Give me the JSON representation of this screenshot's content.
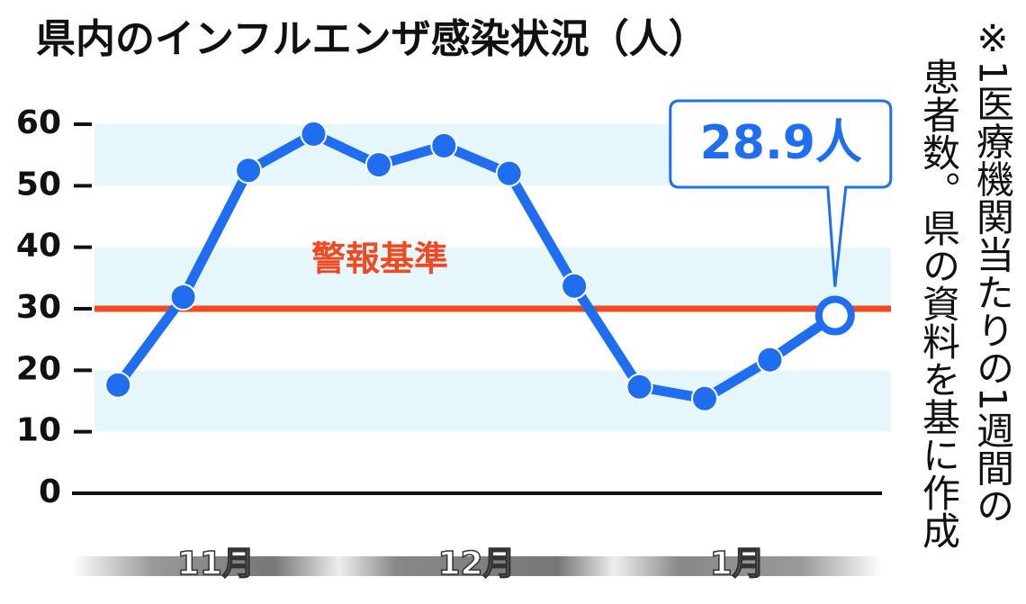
{
  "chart_data": {
    "type": "line",
    "title": "県内のインフルエンザ感染状況（人）",
    "note": [
      "※1医療機関当たりの1週間の",
      "患者数。県の資料を基に作成"
    ],
    "categories": [
      null,
      null,
      null,
      null,
      null,
      null,
      null,
      null,
      null,
      null,
      null,
      null
    ],
    "x_groups": [
      "11月",
      "12月",
      "1月"
    ],
    "series": [
      {
        "name": null,
        "color": "#1f6ef0",
        "values": [
          17.6,
          31.9,
          52.5,
          58.4,
          53.4,
          56.5,
          52.0,
          33.7,
          17.3,
          15.4,
          21.7,
          28.9
        ],
        "value_labels": [
          null,
          null,
          null,
          null,
          null,
          null,
          null,
          null,
          null,
          null,
          null,
          "28.9人"
        ]
      }
    ],
    "reference_line": {
      "value": 30,
      "label": "警報基準",
      "color": "#f04a23"
    },
    "ylim": [
      0,
      60
    ],
    "yticks": [
      0,
      10,
      20,
      30,
      40,
      50,
      60
    ],
    "bands": true,
    "band_color": "#e6f7fb"
  }
}
